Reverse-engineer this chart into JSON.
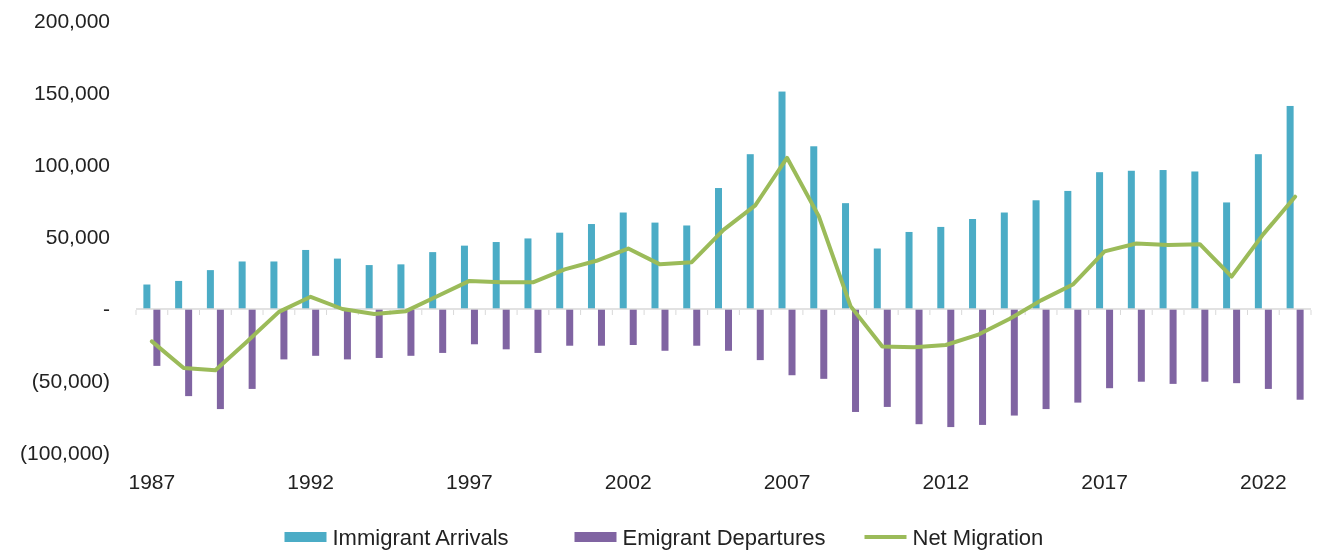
{
  "chart_data": {
    "type": "bar",
    "categories": [
      "1987",
      null,
      null,
      null,
      null,
      "1992",
      null,
      null,
      null,
      null,
      "1997",
      null,
      null,
      null,
      null,
      "2002",
      null,
      null,
      null,
      null,
      "2007",
      null,
      null,
      null,
      null,
      "2012",
      null,
      null,
      null,
      null,
      "2017",
      null,
      null,
      null,
      null,
      "2022",
      null
    ],
    "series": [
      {
        "name": "Immigrant Arrivals",
        "color": "#4bacc6",
        "values": [
          17000,
          19500,
          27000,
          33000,
          33000,
          41000,
          35000,
          30500,
          31000,
          39500,
          44000,
          46500,
          49000,
          53000,
          59000,
          67000,
          60000,
          58000,
          84000,
          107500,
          151000,
          113000,
          73500,
          42000,
          53500,
          57000,
          62500,
          67000,
          75500,
          82000,
          95000,
          96000,
          96500,
          95500,
          74000,
          107500,
          141000
        ]
      },
      {
        "name": "Emigrant Departures",
        "color": "#8064a2",
        "values": [
          -39500,
          -60500,
          -69500,
          -55500,
          -35000,
          -32500,
          -35000,
          -34000,
          -32500,
          -30500,
          -24500,
          -28000,
          -30500,
          -25500,
          -25500,
          -25000,
          -29000,
          -25500,
          -29000,
          -35500,
          -46000,
          -48500,
          -71500,
          -68000,
          -80000,
          -82000,
          -80500,
          -74000,
          -69500,
          -65000,
          -55000,
          -50500,
          -52000,
          -50500,
          -51500,
          -55500,
          -63000
        ]
      },
      {
        "name": "Net Migration",
        "type": "line",
        "color": "#9bbb59",
        "values": [
          -22500,
          -41000,
          -42500,
          -22500,
          -2000,
          8500,
          0,
          -3500,
          -1500,
          9000,
          19500,
          18500,
          18500,
          27500,
          33500,
          42000,
          31000,
          32500,
          55000,
          72000,
          105000,
          64500,
          2000,
          -26000,
          -26500,
          -25000,
          -18000,
          -7000,
          6000,
          17000,
          40000,
          45500,
          44500,
          45000,
          22500,
          52000,
          78000
        ]
      }
    ],
    "ylim": [
      -100000,
      200000
    ],
    "yticks": [
      {
        "value": -100000,
        "label": "(100,000)"
      },
      {
        "value": -50000,
        "label": "(50,000)"
      },
      {
        "value": 0,
        "label": "-"
      },
      {
        "value": 50000,
        "label": "50,000"
      },
      {
        "value": 100000,
        "label": "100,000"
      },
      {
        "value": 150000,
        "label": "150,000"
      },
      {
        "value": 200000,
        "label": "200,000"
      }
    ],
    "ref_lines": [
      {
        "axis": "y",
        "value": 0,
        "color": "#d9d9d9"
      }
    ],
    "grid": false,
    "legend": "bottom",
    "marker": "none",
    "line_style": "solid"
  }
}
